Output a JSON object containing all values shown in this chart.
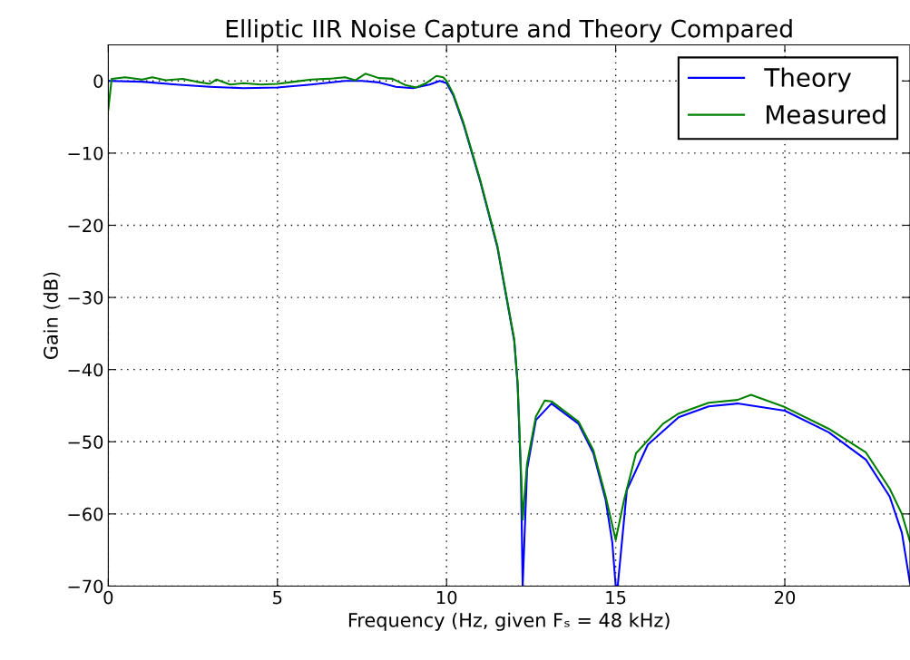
{
  "chart_data": {
    "type": "line",
    "title": "Elliptic IIR Noise Capture and Theory Compared",
    "xlabel": "Frequency (Hz, given Fₛ = 48 kHz)",
    "ylabel": "Gain (dB)",
    "xlim": [
      0,
      23.7
    ],
    "ylim": [
      -70,
      5
    ],
    "xticks": [
      0,
      5,
      10,
      15,
      20
    ],
    "yticks": [
      {
        "value": 0,
        "label": "0"
      },
      {
        "value": -10,
        "label": "−10"
      },
      {
        "value": -20,
        "label": "−20"
      },
      {
        "value": -30,
        "label": "−30"
      },
      {
        "value": -40,
        "label": "−40"
      },
      {
        "value": -50,
        "label": "−50"
      },
      {
        "value": -60,
        "label": "−60"
      },
      {
        "value": -70,
        "label": "−70"
      }
    ],
    "grid": true,
    "legend": "top right",
    "line_style": "solid",
    "marker": "none",
    "series": [
      {
        "name": "Theory",
        "color": "#0000ff",
        "x": [
          0,
          1,
          2,
          3,
          4,
          5,
          6,
          7,
          7.5,
          8,
          8.5,
          9,
          9.5,
          9.8,
          10,
          10.2,
          10.5,
          11,
          11.5,
          12,
          12.1,
          12.2,
          12.25,
          12.38,
          12.64,
          13.1,
          13.9,
          14.34,
          14.7,
          14.9,
          15.0,
          15.06,
          15.33,
          15.95,
          16.86,
          17.75,
          18.6,
          20.0,
          21.3,
          22.4,
          23.1,
          23.46,
          23.7
        ],
        "values": [
          0,
          -0.1,
          -0.5,
          -0.8,
          -1.0,
          -0.9,
          -0.5,
          0,
          0,
          -0.2,
          -0.8,
          -1.0,
          -0.5,
          0,
          -0.3,
          -2,
          -6,
          -14,
          -23,
          -36,
          -42,
          -55,
          -70,
          -53.8,
          -47,
          -44.7,
          -47.5,
          -51.6,
          -58,
          -64,
          -70,
          -70,
          -56.7,
          -50.4,
          -46.6,
          -45.1,
          -44.7,
          -45.7,
          -48.7,
          -52.5,
          -57.6,
          -62.6,
          -69.6
        ]
      },
      {
        "name": "Measured",
        "color": "#008000",
        "x": [
          0,
          0.1,
          0.5,
          1,
          1.3,
          1.7,
          2.2,
          2.6,
          3.0,
          3.2,
          3.6,
          4.0,
          4.5,
          5.0,
          5.5,
          6.0,
          6.5,
          7.0,
          7.3,
          7.6,
          8.0,
          8.4,
          8.8,
          9.1,
          9.4,
          9.7,
          9.9,
          10.0,
          10.2,
          10.5,
          11,
          11.5,
          12,
          12.1,
          12.2,
          12.25,
          12.38,
          12.64,
          12.9,
          13.1,
          13.9,
          14.34,
          14.7,
          15.0,
          15.25,
          15.6,
          16.4,
          16.86,
          17.75,
          18.6,
          19.0,
          20.0,
          21.3,
          22.4,
          23.1,
          23.46,
          23.7
        ],
        "values": [
          -4,
          0.3,
          0.5,
          0.2,
          0.5,
          0.1,
          0.3,
          -0.1,
          -0.4,
          0.2,
          -0.5,
          -0.3,
          -0.5,
          -0.4,
          -0.1,
          0.2,
          0.3,
          0.5,
          0.1,
          1.0,
          0.4,
          0.3,
          -0.6,
          -0.9,
          -0.3,
          0.7,
          0.5,
          0,
          -1.8,
          -5.8,
          -13.8,
          -22.8,
          -35.8,
          -41.8,
          -54,
          -60.8,
          -53,
          -46.5,
          -44.3,
          -44.4,
          -47.2,
          -51.2,
          -57.5,
          -63.6,
          -58,
          -51.6,
          -47.5,
          -46.1,
          -44.6,
          -44.2,
          -43.5,
          -45.2,
          -48.2,
          -51.5,
          -56.5,
          -60,
          -63.8
        ]
      }
    ]
  }
}
